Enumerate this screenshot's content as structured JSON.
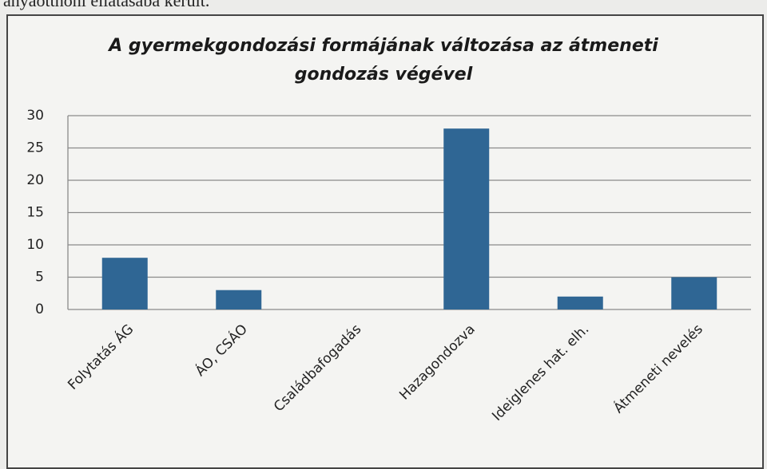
{
  "text_above": "anyaotthoni ellátásába került.",
  "chart_data": {
    "type": "bar",
    "title": "A gyermekgondozási formájának változása az átmeneti gondozás végével",
    "categories": [
      "Folytatás ÁG",
      "ÁO, CSÁO",
      "Családbafogadás",
      "Hazagondozva",
      "Ideiglenes hat. elh.",
      "Átmeneti nevelés"
    ],
    "values": [
      8,
      3,
      0,
      28,
      2,
      5
    ],
    "color": "#2f6694",
    "ylim": [
      0,
      30
    ],
    "yticks": [
      0,
      5,
      10,
      15,
      20,
      25,
      30
    ],
    "grid": true
  }
}
